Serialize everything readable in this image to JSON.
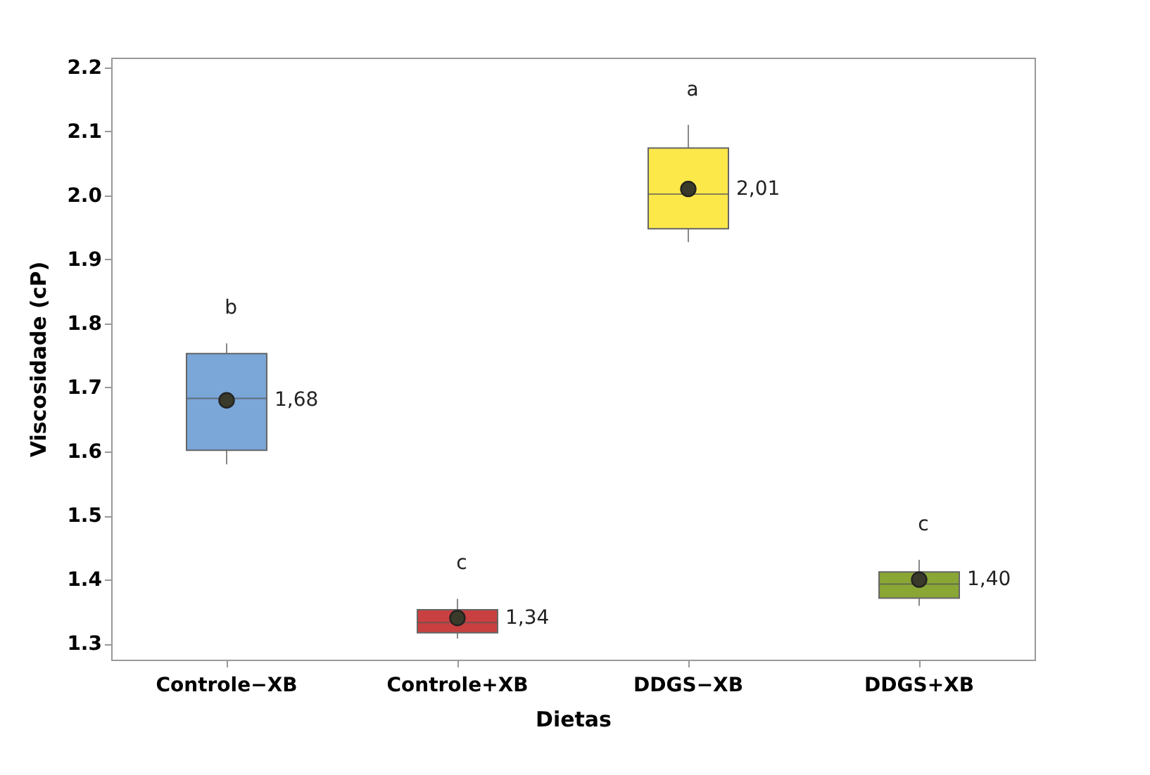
{
  "chart_data": {
    "type": "box",
    "xlabel": "Dietas",
    "ylabel": "Viscosidade (cP)",
    "categories": [
      "Controle−XB",
      "Controle+XB",
      "DDGS−XB",
      "DDGS+XB"
    ],
    "colors": [
      "#7aa6d8",
      "#c94040",
      "#fde84a",
      "#8aa634"
    ],
    "boxes": [
      {
        "low": 1.58,
        "q1": 1.602,
        "median": 1.683,
        "q3": 1.753,
        "high": 1.769,
        "mean": 1.68
      },
      {
        "low": 1.308,
        "q1": 1.317,
        "median": 1.333,
        "q3": 1.353,
        "high": 1.37,
        "mean": 1.34
      },
      {
        "low": 1.927,
        "q1": 1.948,
        "median": 2.002,
        "q3": 2.074,
        "high": 2.11,
        "mean": 2.01
      },
      {
        "low": 1.359,
        "q1": 1.371,
        "median": 1.393,
        "q3": 1.412,
        "high": 1.431,
        "mean": 1.4
      }
    ],
    "ylim": [
      1.275,
      2.215
    ],
    "yticks": [
      1.3,
      1.4,
      1.5,
      1.6,
      1.7,
      1.8,
      1.9,
      {
        "value": 2,
        "label": "2.0"
      },
      2.1,
      2.2
    ],
    "marker": "circle",
    "grid": false,
    "annotations": [
      {
        "text": "b",
        "x": "Controle−XB",
        "y": 1.769
      },
      {
        "text": "1,68",
        "x": "Controle−XB",
        "y": 1.68
      },
      {
        "text": "c",
        "x": "Controle+XB",
        "y": 1.37
      },
      {
        "text": "1,34",
        "x": "Controle+XB",
        "y": 1.34
      },
      {
        "text": "a",
        "x": "DDGS−XB",
        "y": 2.11
      },
      {
        "text": "2,01",
        "x": "DDGS−XB",
        "y": 2.01
      },
      {
        "text": "c",
        "x": "DDGS+XB",
        "y": 1.431
      },
      {
        "text": "1,40",
        "x": "DDGS+XB",
        "y": 1.4
      }
    ]
  }
}
